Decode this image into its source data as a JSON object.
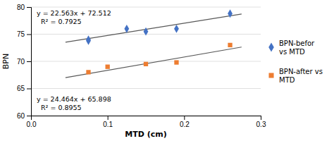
{
  "chart_data": {
    "type": "scatter",
    "xlabel": "MTD (cm)",
    "ylabel": "BPN",
    "xlim": [
      0,
      0.3
    ],
    "ylim": [
      60,
      80
    ],
    "xticks": [
      {
        "value": 0,
        "label": "0.0"
      },
      0.1,
      0.2,
      0.3
    ],
    "yticks": [
      60,
      65,
      70,
      75,
      80
    ],
    "grid": true,
    "legend": "right",
    "series": [
      {
        "type": "line",
        "color": "#595959",
        "x": [
          0.045,
          0.275
        ],
        "values": [
          73.527335,
          78.716825
        ]
      },
      {
        "type": "line",
        "color": "#595959",
        "x": [
          0.045,
          0.275
        ],
        "values": [
          66.99888,
          72.6256
        ]
      },
      {
        "type": "scatter",
        "name": "BPN-befor\nvs MTD",
        "color": "#4472C4",
        "marker": "diamond",
        "x": [
          0.075,
          0.075,
          0.125,
          0.15,
          0.19,
          0.26
        ],
        "values": [
          73.8,
          74.0,
          76.0,
          75.5,
          76.0,
          78.8
        ]
      },
      {
        "type": "scatter",
        "name": "BPN-after vs\nMTD",
        "color": "#ED7D31",
        "marker": "square",
        "x": [
          0.075,
          0.1,
          0.15,
          0.19,
          0.26
        ],
        "values": [
          68.0,
          69.0,
          69.5,
          69.8,
          73.0
        ]
      }
    ],
    "annotations": [
      "y = 22.563x + 72.512",
      "R² = 0.7925",
      "y = 24.464x + 65.898",
      "R² = 0.8955"
    ]
  }
}
